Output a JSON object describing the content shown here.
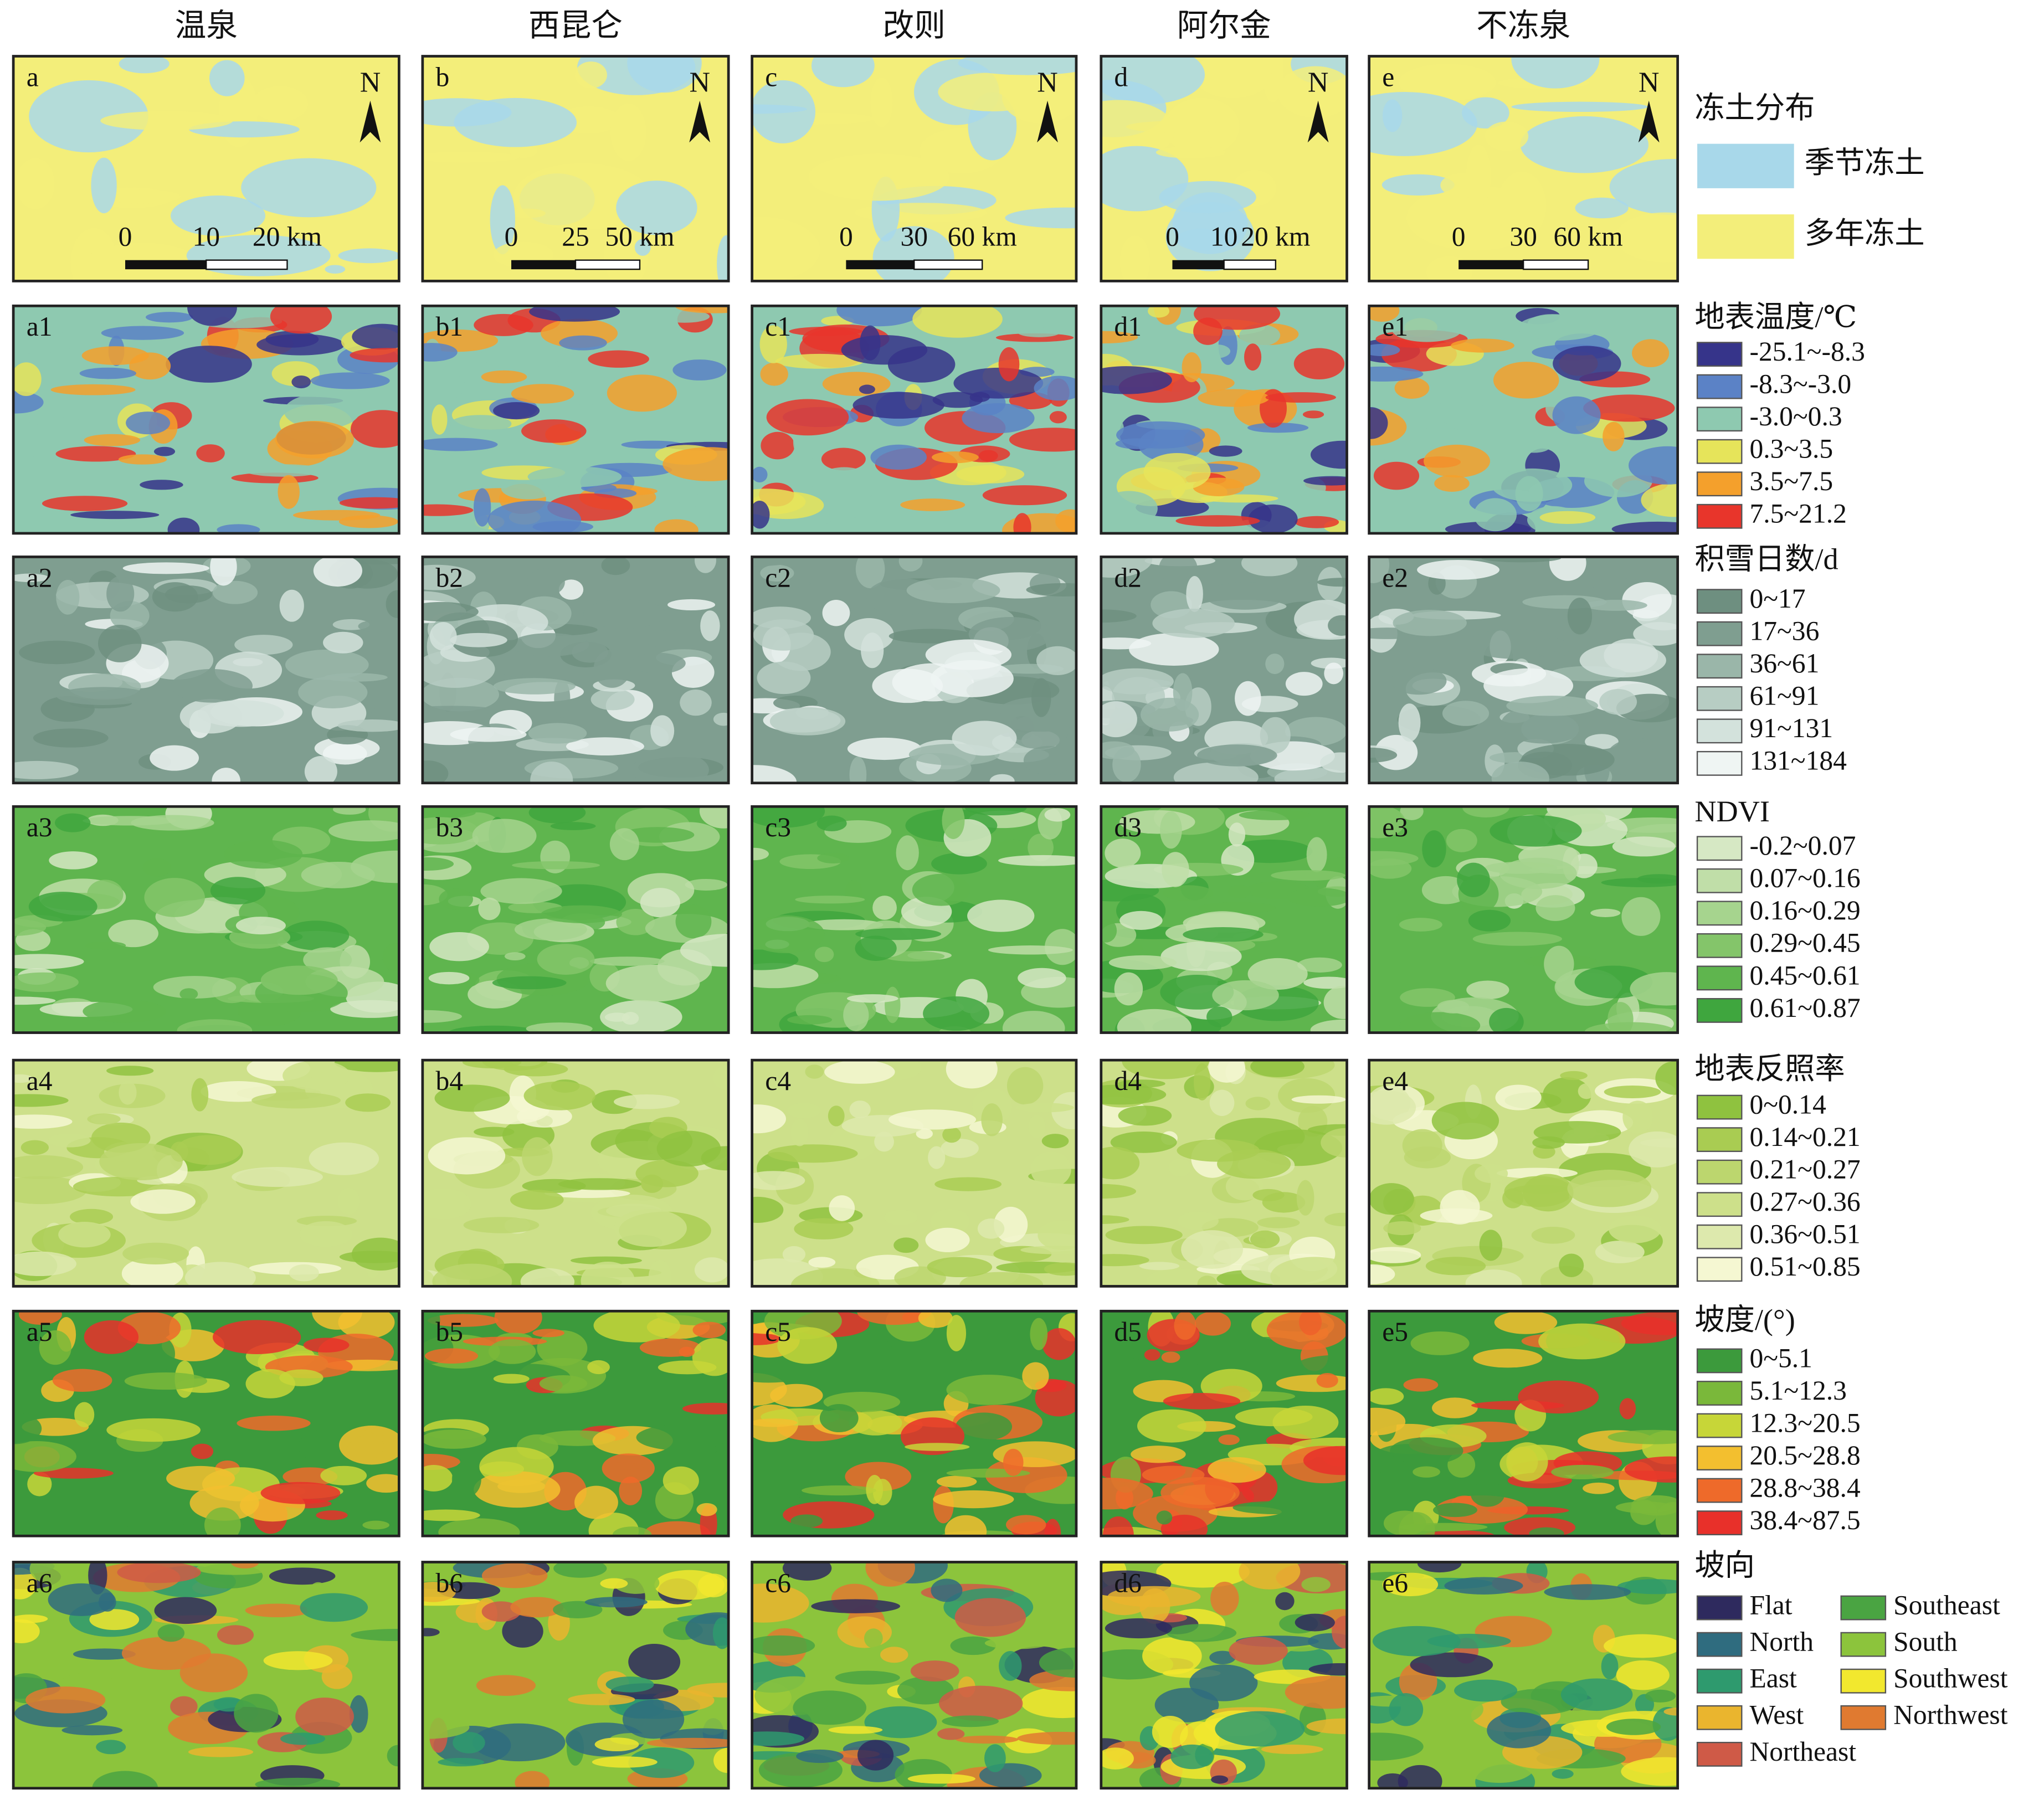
{
  "columns": [
    "温泉",
    "西昆仑",
    "改则",
    "阿尔金",
    "不冻泉"
  ],
  "rows": [
    [
      "a",
      "b",
      "c",
      "d",
      "e"
    ],
    [
      "a1",
      "b1",
      "c1",
      "d1",
      "e1"
    ],
    [
      "a2",
      "b2",
      "c2",
      "d2",
      "e2"
    ],
    [
      "a3",
      "b3",
      "c3",
      "d3",
      "e3"
    ],
    [
      "a4",
      "b4",
      "c4",
      "d4",
      "e4"
    ],
    [
      "a5",
      "b5",
      "c5",
      "d5",
      "e5"
    ],
    [
      "a6",
      "b6",
      "c6",
      "d6",
      "e6"
    ]
  ],
  "north_label": "N",
  "scale_bars": [
    [
      "0",
      "10",
      "20 km"
    ],
    [
      "0",
      "25",
      "50 km"
    ],
    [
      "0",
      "30",
      "60 km"
    ],
    [
      "0",
      "10",
      "20 km"
    ],
    [
      "0",
      "30",
      "60 km"
    ]
  ],
  "legends": [
    {
      "title": "冻土分布",
      "items": [
        {
          "label": "季节冻土",
          "color": "#a8d8ea"
        },
        {
          "label": "多年冻土",
          "color": "#f3ee7a"
        }
      ]
    },
    {
      "title": "地表温度/℃",
      "items": [
        {
          "label": "-25.1~-8.3",
          "color": "#36348a"
        },
        {
          "label": "-8.3~-3.0",
          "color": "#5b82c6"
        },
        {
          "label": "-3.0~0.3",
          "color": "#8ec9b0"
        },
        {
          "label": "0.3~3.5",
          "color": "#e6e45a"
        },
        {
          "label": "3.5~7.5",
          "color": "#f4a02c"
        },
        {
          "label": "7.5~21.2",
          "color": "#e8352b"
        }
      ]
    },
    {
      "title": "积雪日数/d",
      "items": [
        {
          "label": "0~17",
          "color": "#6e8f80"
        },
        {
          "label": "17~36",
          "color": "#7f9e90"
        },
        {
          "label": "36~61",
          "color": "#9ab6a9"
        },
        {
          "label": "61~91",
          "color": "#b7cdc3"
        },
        {
          "label": "91~131",
          "color": "#d3e2dc"
        },
        {
          "label": "131~184",
          "color": "#eff5f3"
        }
      ]
    },
    {
      "title": "NDVI",
      "items": [
        {
          "label": "-0.2~0.07",
          "color": "#d6e8c4"
        },
        {
          "label": "0.07~0.16",
          "color": "#c0dea8"
        },
        {
          "label": "0.16~0.29",
          "color": "#a6d48e"
        },
        {
          "label": "0.29~0.45",
          "color": "#84c56a"
        },
        {
          "label": "0.45~0.61",
          "color": "#5fb54e"
        },
        {
          "label": "0.61~0.87",
          "color": "#3fa63e"
        }
      ]
    },
    {
      "title": "地表反照率",
      "items": [
        {
          "label": "0~0.14",
          "color": "#8fc23f"
        },
        {
          "label": "0.14~0.21",
          "color": "#a9cc52"
        },
        {
          "label": "0.21~0.27",
          "color": "#bcd66e"
        },
        {
          "label": "0.27~0.36",
          "color": "#cde08a"
        },
        {
          "label": "0.36~0.51",
          "color": "#dde9ad"
        },
        {
          "label": "0.51~0.85",
          "color": "#f5f7d2"
        }
      ]
    },
    {
      "title": "坡度/(°)",
      "items": [
        {
          "label": "0~5.1",
          "color": "#3c9a3c"
        },
        {
          "label": "5.1~12.3",
          "color": "#7ab83a"
        },
        {
          "label": "12.3~20.5",
          "color": "#c7d638"
        },
        {
          "label": "20.5~28.8",
          "color": "#f3bf2f"
        },
        {
          "label": "28.8~38.4",
          "color": "#ee6a2a"
        },
        {
          "label": "38.4~87.5",
          "color": "#e8302a"
        }
      ]
    },
    {
      "title": "坡向",
      "items": [
        {
          "label": "Flat",
          "color": "#2e2a5e"
        },
        {
          "label": "North",
          "color": "#2f6c7f"
        },
        {
          "label": "East",
          "color": "#2e9a6e"
        },
        {
          "label": "West",
          "color": "#eab52e"
        },
        {
          "label": "Northeast",
          "color": "#cf5a47"
        },
        {
          "label": "Southeast",
          "color": "#4aa442"
        },
        {
          "label": "South",
          "color": "#8cc43c"
        },
        {
          "label": "Southwest",
          "color": "#f2e82e"
        },
        {
          "label": "Northwest",
          "color": "#e07a30"
        }
      ]
    }
  ]
}
